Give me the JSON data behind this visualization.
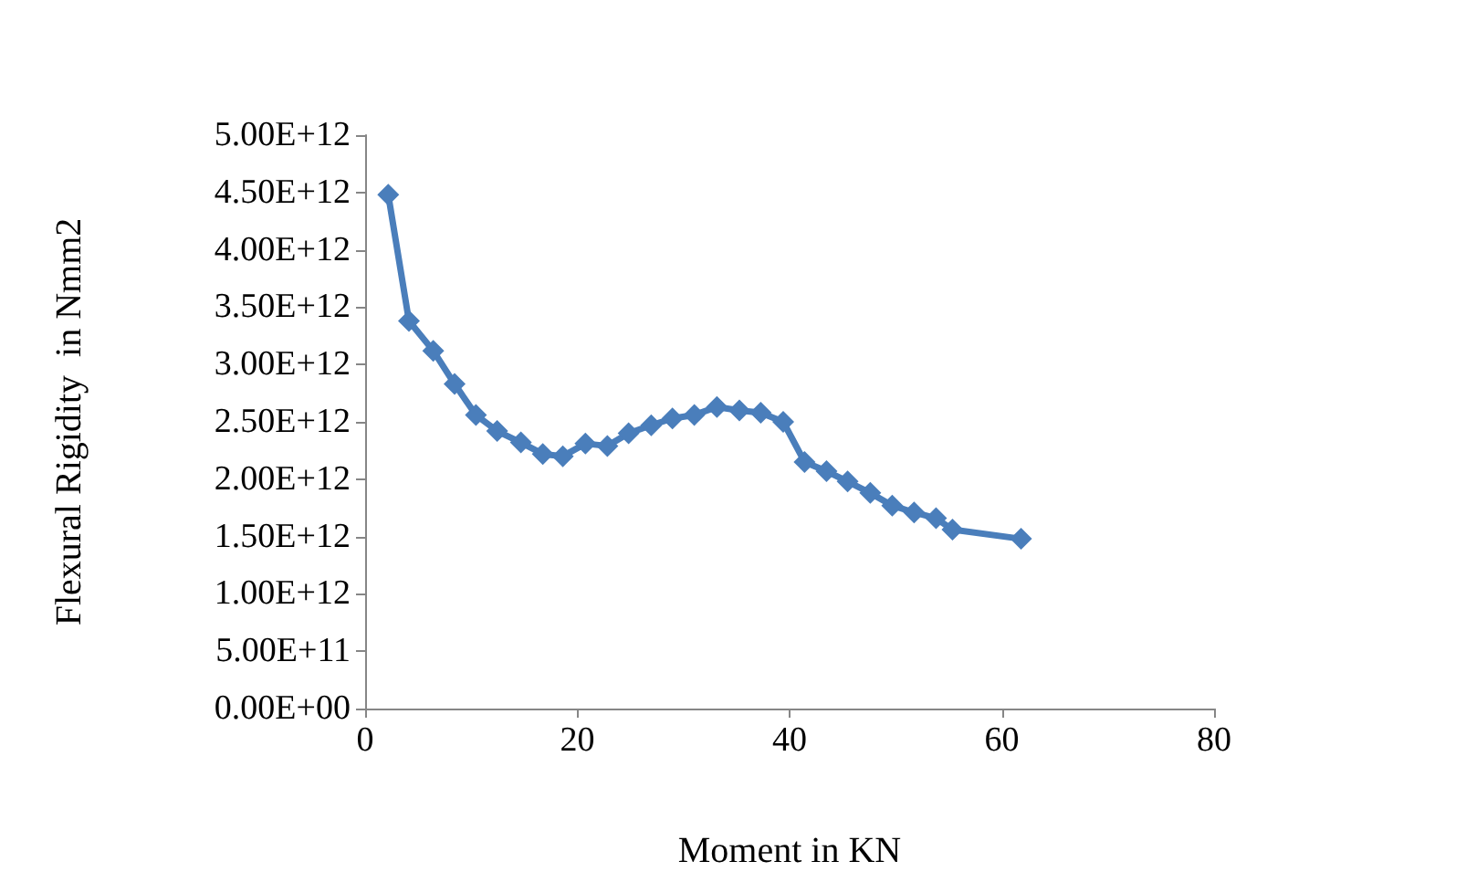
{
  "chart_data": {
    "type": "line",
    "xlabel": "Moment in KN",
    "ylabel": "Flexural Rigidity  in Nmm2",
    "x": [
      2.18,
      4.13,
      6.42,
      8.43,
      10.44,
      12.44,
      14.68,
      16.74,
      18.63,
      20.76,
      22.83,
      24.83,
      26.96,
      28.96,
      31.02,
      33.15,
      35.27,
      37.28,
      39.4,
      41.41,
      43.48,
      45.47,
      47.6,
      49.67,
      51.73,
      53.8,
      55.35,
      61.81
    ],
    "series": [
      {
        "color": "#4a7ebb",
        "values": [
          4480000000000.0,
          3380000000000.0,
          3120000000000.0,
          2830000000000.0,
          2560000000000.0,
          2420000000000.0,
          2320000000000.0,
          2220000000000.0,
          2200000000000.0,
          2310000000000.0,
          2290000000000.0,
          2400000000000.0,
          2470000000000.0,
          2530000000000.0,
          2560000000000.0,
          2630000000000.0,
          2600000000000.0,
          2580000000000.0,
          2500000000000.0,
          2150000000000.0,
          2070000000000.0,
          1980000000000.0,
          1880000000000.0,
          1770000000000.0,
          1710000000000.0,
          1660000000000.0,
          1560000000000.0,
          1480000000000.0
        ]
      }
    ],
    "xlim": [
      0,
      80
    ],
    "xticks": [
      0,
      20,
      40,
      60,
      80
    ],
    "ylim": [
      0,
      5000000000000.0
    ],
    "yticks": [
      {
        "value": 0,
        "label": "0.00E+00"
      },
      {
        "value": 500000000000.0,
        "label": "5.00E+11"
      },
      {
        "value": 1000000000000.0,
        "label": "1.00E+12"
      },
      {
        "value": 1500000000000.0,
        "label": "1.50E+12"
      },
      {
        "value": 2000000000000.0,
        "label": "2.00E+12"
      },
      {
        "value": 2500000000000.0,
        "label": "2.50E+12"
      },
      {
        "value": 3000000000000.0,
        "label": "3.00E+12"
      },
      {
        "value": 3500000000000.0,
        "label": "3.50E+12"
      },
      {
        "value": 4000000000000.0,
        "label": "4.00E+12"
      },
      {
        "value": 4500000000000.0,
        "label": "4.50E+12"
      },
      {
        "value": 5000000000000.0,
        "label": "5.00E+12"
      }
    ],
    "grid": false,
    "marker": "diamond",
    "line_style": "solid"
  }
}
